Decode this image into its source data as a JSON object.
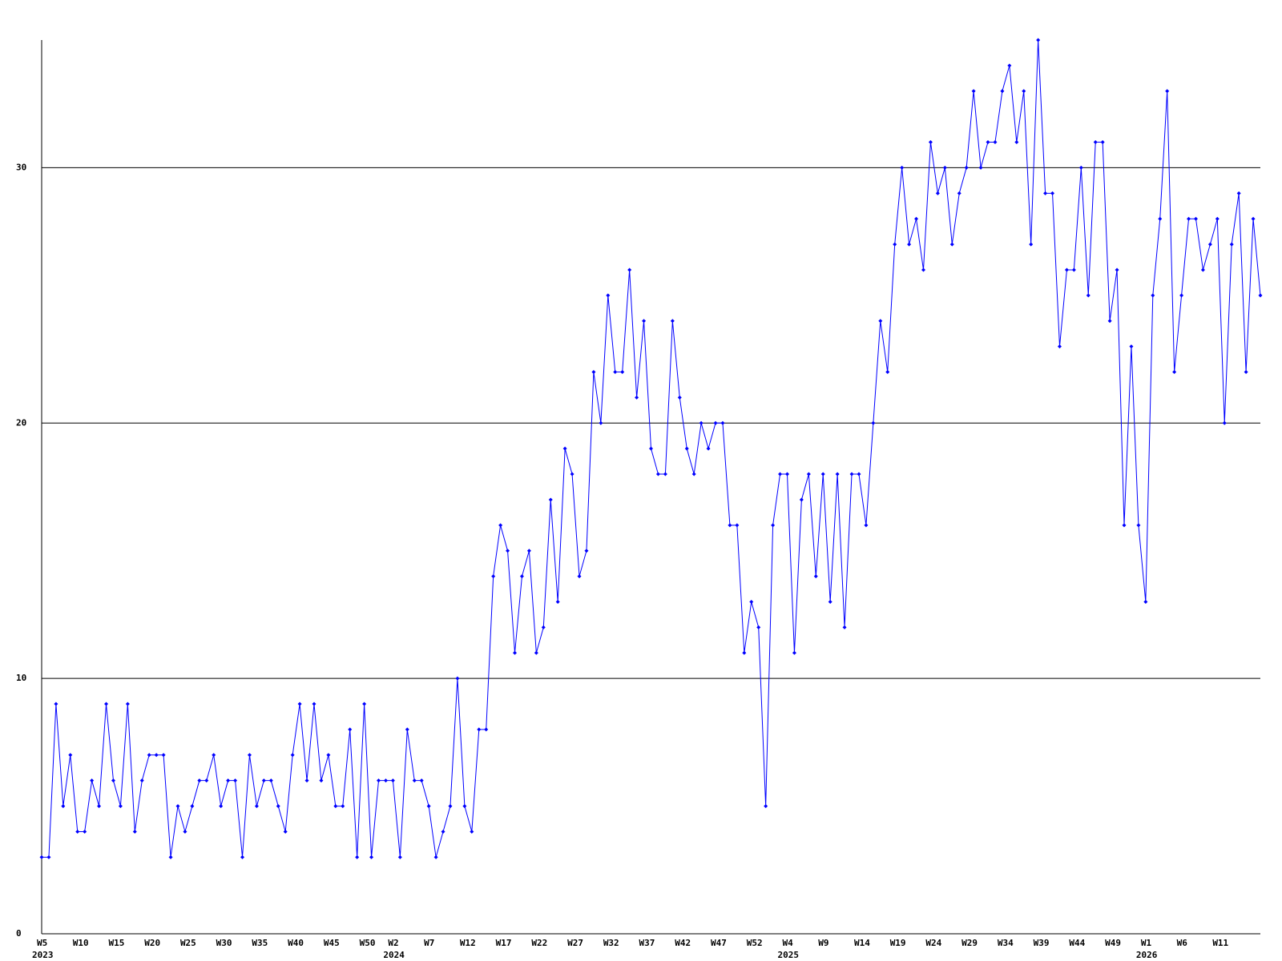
{
  "chart_data": {
    "type": "line",
    "color": "#0000ff",
    "grid": true,
    "ylim": [
      0,
      35
    ],
    "yticks": [
      0,
      10,
      20,
      30
    ],
    "categories": [
      "W5",
      null,
      null,
      null,
      null,
      "W10",
      null,
      null,
      null,
      null,
      "W15",
      null,
      null,
      null,
      null,
      "W20",
      null,
      null,
      null,
      null,
      "W25",
      null,
      null,
      null,
      null,
      "W30",
      null,
      null,
      null,
      null,
      "W35",
      null,
      null,
      null,
      null,
      "W40",
      null,
      null,
      null,
      null,
      "W45",
      null,
      null,
      null,
      null,
      "W50",
      null,
      null,
      null,
      "W2",
      null,
      null,
      null,
      null,
      "W7",
      null,
      null,
      null,
      null,
      "W12",
      null,
      null,
      null,
      null,
      "W17",
      null,
      null,
      null,
      null,
      "W22",
      null,
      null,
      null,
      null,
      "W27",
      null,
      null,
      null,
      null,
      "W32",
      null,
      null,
      null,
      null,
      "W37",
      null,
      null,
      null,
      null,
      "W42",
      null,
      null,
      null,
      null,
      "W47",
      null,
      null,
      null,
      null,
      "W52",
      null,
      null,
      null,
      null,
      "W4",
      null,
      null,
      null,
      null,
      "W9",
      null,
      null,
      null,
      null,
      "W14",
      null,
      null,
      null,
      null,
      "W19",
      null,
      null,
      null,
      null,
      "W24",
      null,
      null,
      null,
      null,
      "W29",
      null,
      null,
      null,
      null,
      "W34",
      null,
      null,
      null,
      null,
      "W39",
      null,
      null,
      null,
      null,
      "W44",
      null,
      null,
      null,
      null,
      "W49",
      null,
      null,
      null,
      null,
      "W1",
      null,
      null,
      null,
      null,
      "W6",
      null,
      null,
      null,
      null,
      "W11",
      null,
      null,
      null,
      null,
      null,
      null
    ],
    "years": [
      "2023",
      null,
      null,
      null,
      null,
      null,
      null,
      null,
      null,
      null,
      null,
      null,
      null,
      null,
      null,
      null,
      null,
      null,
      null,
      null,
      null,
      null,
      null,
      null,
      null,
      null,
      null,
      null,
      null,
      null,
      null,
      null,
      null,
      null,
      null,
      null,
      null,
      null,
      null,
      null,
      null,
      null,
      null,
      null,
      null,
      null,
      null,
      null,
      null,
      "2024",
      null,
      null,
      null,
      null,
      null,
      null,
      null,
      null,
      null,
      null,
      null,
      null,
      null,
      null,
      null,
      null,
      null,
      null,
      null,
      null,
      null,
      null,
      null,
      null,
      null,
      null,
      null,
      null,
      null,
      null,
      null,
      null,
      null,
      null,
      null,
      null,
      null,
      null,
      null,
      null,
      null,
      null,
      null,
      null,
      null,
      null,
      null,
      null,
      null,
      null,
      null,
      null,
      null,
      null,
      "2025",
      null,
      null,
      null,
      null,
      null,
      null,
      null,
      null,
      null,
      null,
      null,
      null,
      null,
      null,
      null,
      null,
      null,
      null,
      null,
      null,
      null,
      null,
      null,
      null,
      null,
      null,
      null,
      null,
      null,
      null,
      null,
      null,
      null,
      null,
      null,
      null,
      null,
      null,
      null,
      null,
      null,
      null,
      null,
      null,
      null,
      null,
      null,
      null,
      null,
      "2026",
      null,
      null,
      null,
      null,
      null,
      null,
      null,
      null,
      null,
      null,
      null,
      null,
      null,
      null,
      null,
      null
    ],
    "values": [
      3,
      3,
      9,
      5,
      7,
      4,
      4,
      6,
      5,
      9,
      6,
      5,
      9,
      4,
      6,
      7,
      7,
      7,
      3,
      5,
      4,
      5,
      6,
      6,
      7,
      5,
      6,
      6,
      3,
      7,
      5,
      6,
      6,
      5,
      4,
      7,
      9,
      6,
      9,
      6,
      7,
      5,
      5,
      8,
      3,
      9,
      3,
      6,
      6,
      6,
      3,
      8,
      6,
      6,
      5,
      3,
      4,
      5,
      10,
      5,
      4,
      8,
      8,
      14,
      16,
      15,
      11,
      14,
      15,
      11,
      12,
      17,
      13,
      19,
      18,
      14,
      15,
      22,
      20,
      25,
      22,
      22,
      26,
      21,
      24,
      19,
      18,
      18,
      24,
      21,
      19,
      18,
      20,
      19,
      20,
      20,
      16,
      16,
      11,
      13,
      12,
      5,
      16,
      18,
      18,
      11,
      17,
      18,
      14,
      18,
      13,
      18,
      12,
      18,
      18,
      16,
      20,
      24,
      22,
      27,
      30,
      27,
      28,
      26,
      31,
      29,
      30,
      27,
      29,
      30,
      33,
      30,
      31,
      31,
      33,
      34,
      31,
      33,
      27,
      35,
      29,
      29,
      23,
      26,
      26,
      30,
      25,
      31,
      31,
      24,
      26,
      16,
      23,
      16,
      13,
      25,
      28,
      33,
      22,
      25,
      28,
      28,
      26,
      27,
      28,
      20,
      27,
      29,
      22,
      28,
      25
    ]
  }
}
